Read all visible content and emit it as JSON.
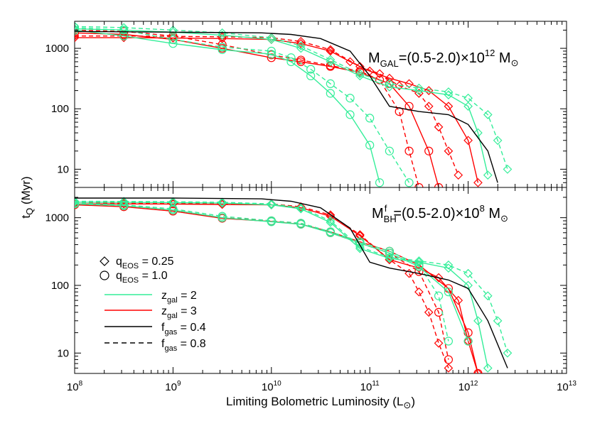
{
  "chart_data": [
    {
      "panel": "top",
      "type": "line",
      "annotation": {
        "main": "M",
        "sub": "GAL",
        "rest": "=(0.5-2.0)×10",
        "sup": "12",
        "unit": " M",
        "sun": "⊙"
      },
      "x_scale": "log",
      "y_scale": "log",
      "xlim": [
        100000000.0,
        10000000000000.0
      ],
      "ylim": [
        5,
        2800
      ],
      "ylabel": {
        "main": "t",
        "sub": "Q",
        "rest": " (Myr)"
      },
      "series": [
        {
          "color": "#ff0000",
          "dashed": true,
          "marker": "diamond",
          "x": [
            8,
            8.5,
            9,
            9.5,
            10,
            10.3,
            10.6,
            10.9,
            11.1,
            11.3,
            11.5,
            11.6,
            11.7,
            11.8,
            11.9
          ],
          "y": [
            1600,
            1600,
            1580,
            1550,
            1500,
            1300,
            950,
            500,
            380,
            240,
            180,
            110,
            50,
            20,
            8
          ]
        },
        {
          "color": "#ff0000",
          "dashed": false,
          "marker": "diamond",
          "x": [
            8,
            8.5,
            9,
            9.5,
            10,
            10.3,
            10.6,
            10.8,
            11,
            11.2,
            11.4,
            11.6,
            11.8,
            12,
            12.1
          ],
          "y": [
            1500,
            1500,
            1480,
            1450,
            1400,
            1200,
            900,
            600,
            420,
            320,
            260,
            200,
            110,
            30,
            6
          ]
        },
        {
          "color": "#ff0000",
          "dashed": true,
          "marker": "circle",
          "x": [
            8,
            8.5,
            9,
            9.5,
            10,
            10.3,
            10.6,
            10.9,
            11.1,
            11.3,
            11.4,
            11.5
          ],
          "y": [
            2000,
            1900,
            1600,
            1150,
            780,
            640,
            520,
            420,
            300,
            90,
            20,
            5
          ]
        },
        {
          "color": "#ff0000",
          "dashed": false,
          "marker": "circle",
          "x": [
            8,
            8.5,
            9,
            9.5,
            10,
            10.3,
            10.6,
            10.9,
            11.2,
            11.4,
            11.6,
            11.7
          ],
          "y": [
            1800,
            1700,
            1400,
            1000,
            700,
            600,
            500,
            400,
            260,
            110,
            20,
            5
          ]
        },
        {
          "color": "#33ee99",
          "dashed": true,
          "marker": "diamond",
          "x": [
            8,
            8.5,
            9,
            9.5,
            10,
            10.3,
            10.6,
            10.9,
            11.2,
            11.5,
            11.8,
            12,
            12.2,
            12.3,
            12.4
          ],
          "y": [
            2300,
            2200,
            2000,
            1800,
            1500,
            1100,
            650,
            380,
            260,
            220,
            190,
            150,
            80,
            30,
            10
          ]
        },
        {
          "color": "#33ee99",
          "dashed": false,
          "marker": "diamond",
          "x": [
            8,
            8.5,
            9,
            9.5,
            10,
            10.3,
            10.6,
            10.9,
            11.2,
            11.5,
            11.8,
            12,
            12.1,
            12.2
          ],
          "y": [
            2100,
            2000,
            1850,
            1650,
            1400,
            1000,
            600,
            350,
            230,
            200,
            170,
            110,
            40,
            8
          ]
        },
        {
          "color": "#33ee99",
          "dashed": true,
          "marker": "circle",
          "x": [
            8,
            8.5,
            9,
            9.5,
            10,
            10.2,
            10.4,
            10.6,
            10.8,
            11,
            11.2,
            11.4
          ],
          "y": [
            2200,
            2000,
            1400,
            1050,
            900,
            700,
            450,
            260,
            150,
            70,
            20,
            6
          ]
        },
        {
          "color": "#33ee99",
          "dashed": false,
          "marker": "circle",
          "x": [
            8,
            8.5,
            9,
            9.5,
            10,
            10.2,
            10.4,
            10.6,
            10.8,
            11,
            11.1
          ],
          "y": [
            2000,
            1600,
            1200,
            950,
            800,
            600,
            350,
            180,
            80,
            25,
            6
          ]
        },
        {
          "color": "#000000",
          "dashed": false,
          "marker": "none",
          "x": [
            8,
            9,
            9.9,
            10.2,
            10.5,
            10.8,
            11,
            11.2,
            11.5,
            11.8,
            12,
            12.2,
            12.3
          ],
          "y": [
            1900,
            1850,
            1800,
            1700,
            1450,
            900,
            350,
            110,
            90,
            80,
            55,
            20,
            6
          ]
        }
      ]
    },
    {
      "panel": "bottom",
      "type": "line",
      "annotation": {
        "main": "M",
        "sub": "BH",
        "sup1": "f",
        "rest": "=(0.5-2.0)×10",
        "sup": "8",
        "unit": " M",
        "sun": "⊙"
      },
      "x_scale": "log",
      "y_scale": "log",
      "xlim": [
        100000000.0,
        10000000000000.0
      ],
      "ylim": [
        5,
        2800
      ],
      "series": [
        {
          "color": "#ff0000",
          "dashed": true,
          "marker": "diamond",
          "x": [
            8,
            8.5,
            9,
            9.5,
            10,
            10.3,
            10.6,
            10.9,
            11.2,
            11.4,
            11.5,
            11.6,
            11.7,
            11.8
          ],
          "y": [
            1650,
            1650,
            1640,
            1620,
            1600,
            1450,
            1100,
            560,
            240,
            150,
            80,
            40,
            14,
            6
          ]
        },
        {
          "color": "#ff0000",
          "dashed": false,
          "marker": "diamond",
          "x": [
            8,
            8.5,
            9,
            9.5,
            10,
            10.3,
            10.6,
            10.9,
            11.2,
            11.5,
            11.7,
            11.9,
            12,
            12.1
          ],
          "y": [
            1600,
            1600,
            1590,
            1570,
            1550,
            1400,
            1050,
            540,
            240,
            180,
            130,
            60,
            15,
            5
          ]
        },
        {
          "color": "#ff0000",
          "dashed": true,
          "marker": "circle",
          "x": [
            8,
            8.5,
            9,
            9.5,
            10,
            10.3,
            10.6,
            10.9,
            11.2,
            11.5,
            11.7,
            11.8
          ],
          "y": [
            1600,
            1500,
            1300,
            1000,
            900,
            820,
            600,
            420,
            300,
            160,
            40,
            8
          ]
        },
        {
          "color": "#ff0000",
          "dashed": false,
          "marker": "circle",
          "x": [
            8,
            8.5,
            9,
            9.5,
            10,
            10.3,
            10.6,
            10.9,
            11.2,
            11.5,
            11.8,
            12,
            12.1
          ],
          "y": [
            1550,
            1450,
            1250,
            980,
            880,
            800,
            620,
            440,
            320,
            200,
            90,
            20,
            5
          ]
        },
        {
          "color": "#33ee99",
          "dashed": true,
          "marker": "diamond",
          "x": [
            8,
            8.5,
            9,
            9.5,
            10,
            10.3,
            10.6,
            10.9,
            11.2,
            11.5,
            11.8,
            12,
            12.2,
            12.3,
            12.4
          ],
          "y": [
            1750,
            1740,
            1720,
            1690,
            1600,
            1400,
            900,
            370,
            260,
            230,
            200,
            150,
            70,
            30,
            10
          ]
        },
        {
          "color": "#33ee99",
          "dashed": false,
          "marker": "diamond",
          "x": [
            8,
            8.5,
            9,
            9.5,
            10,
            10.3,
            10.6,
            10.9,
            11.2,
            11.5,
            11.8,
            12,
            12.1,
            12.2
          ],
          "y": [
            1700,
            1690,
            1670,
            1640,
            1550,
            1350,
            850,
            350,
            250,
            220,
            180,
            100,
            30,
            6
          ]
        },
        {
          "color": "#33ee99",
          "dashed": true,
          "marker": "circle",
          "x": [
            8,
            8.5,
            9,
            9.5,
            10,
            10.3,
            10.6,
            10.9,
            11.2,
            11.5,
            11.7,
            11.8
          ],
          "y": [
            1650,
            1550,
            1350,
            1050,
            900,
            830,
            620,
            440,
            320,
            200,
            70,
            15
          ]
        },
        {
          "color": "#33ee99",
          "dashed": false,
          "marker": "circle",
          "x": [
            8,
            8.5,
            9,
            9.5,
            10,
            10.3,
            10.6,
            10.9,
            11.2,
            11.5,
            11.8,
            12
          ],
          "y": [
            1600,
            1500,
            1300,
            1000,
            870,
            800,
            600,
            420,
            300,
            190,
            80,
            15
          ]
        },
        {
          "color": "#000000",
          "dashed": false,
          "marker": "none",
          "x": [
            8,
            9,
            9.9,
            10.2,
            10.5,
            10.8,
            11,
            11.2,
            11.5,
            11.8,
            12,
            12.2,
            12.4
          ],
          "y": [
            1950,
            1950,
            1900,
            1750,
            1400,
            700,
            220,
            180,
            150,
            120,
            90,
            30,
            6
          ]
        }
      ]
    }
  ],
  "axes": {
    "xlabel": {
      "main": "Limiting Bolometric Luminosity (L",
      "sun": "⊙",
      "close": ")"
    },
    "x_ticks": [
      {
        "base": "10",
        "exp": "8"
      },
      {
        "base": "10",
        "exp": "9"
      },
      {
        "base": "10",
        "exp": "10"
      },
      {
        "base": "10",
        "exp": "11"
      },
      {
        "base": "10",
        "exp": "12"
      },
      {
        "base": "10",
        "exp": "13"
      }
    ],
    "y_ticks": [
      "10",
      "100",
      "1000"
    ]
  },
  "legend": {
    "items": [
      {
        "kind": "marker",
        "marker": "diamond",
        "main": "q",
        "sub": "EOS",
        "rest": " = 0.25"
      },
      {
        "kind": "marker",
        "marker": "circle",
        "main": "q",
        "sub": "EOS",
        "rest": " = 1.0"
      },
      {
        "kind": "line",
        "color": "#33ee99",
        "dashed": false,
        "main": "z",
        "sub": "gal",
        "rest": " = 2"
      },
      {
        "kind": "line",
        "color": "#ff0000",
        "dashed": false,
        "main": "z",
        "sub": "gal",
        "rest": " = 3"
      },
      {
        "kind": "line",
        "color": "#000000",
        "dashed": false,
        "main": "f",
        "sub": "gas",
        "rest": " = 0.4"
      },
      {
        "kind": "line",
        "color": "#000000",
        "dashed": true,
        "main": "f",
        "sub": "gas",
        "rest": " = 0.8"
      }
    ]
  }
}
